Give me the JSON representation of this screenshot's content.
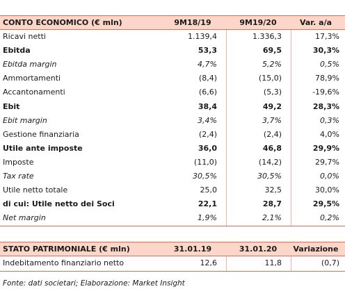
{
  "income": {
    "header": [
      "CONTO ECONOMICO (€ mln)",
      "9M18/19",
      "9M19/20",
      "Var. a/a"
    ],
    "rows": [
      {
        "label": "Ricavi netti",
        "values": [
          "1.139,4",
          "1.336,3",
          "17,3%"
        ],
        "style": "normal"
      },
      {
        "label": "Ebitda",
        "values": [
          "53,3",
          "69,5",
          "30,3%"
        ],
        "style": "bold"
      },
      {
        "label": "Ebitda margin",
        "values": [
          "4,7%",
          "5,2%",
          "0,5%"
        ],
        "style": "italic"
      },
      {
        "label": "Ammortamenti",
        "values": [
          "(8,4)",
          "(15,0)",
          "78,9%"
        ],
        "style": "normal"
      },
      {
        "label": "Accantonamenti",
        "values": [
          "(6,6)",
          "(5,3)",
          "-19,6%"
        ],
        "style": "normal"
      },
      {
        "label": "Ebit",
        "values": [
          "38,4",
          "49,2",
          "28,3%"
        ],
        "style": "bold"
      },
      {
        "label": "Ebit margin",
        "values": [
          "3,4%",
          "3,7%",
          "0,3%"
        ],
        "style": "italic"
      },
      {
        "label": "Gestione finanziaria",
        "values": [
          "(2,4)",
          "(2,4)",
          "4,0%"
        ],
        "style": "normal"
      },
      {
        "label": "Utile ante imposte",
        "values": [
          "36,0",
          "46,8",
          "29,9%"
        ],
        "style": "bold"
      },
      {
        "label": "Imposte",
        "values": [
          "(11,0)",
          "(14,2)",
          "29,7%"
        ],
        "style": "normal"
      },
      {
        "label": "Tax rate",
        "values": [
          "30,5%",
          "30,5%",
          "0,0%"
        ],
        "style": "italic"
      },
      {
        "label": "Utile netto totale",
        "values": [
          "25,0",
          "32,5",
          "30,0%"
        ],
        "style": "normal"
      },
      {
        "label": "di cui: Utile netto dei Soci",
        "values": [
          "22,1",
          "28,7",
          "29,5%"
        ],
        "style": "bold"
      },
      {
        "label": "Net margin",
        "values": [
          "1,9%",
          "2,1%",
          "0,2%"
        ],
        "style": "italic"
      }
    ]
  },
  "balance": {
    "header": [
      "STATO PATRIMONIALE (€ mln)",
      "31.01.19",
      "31.01.20",
      "Variazione"
    ],
    "rows": [
      {
        "label": "Indebitamento finanziario netto",
        "values": [
          "12,6",
          "11,8",
          "(0,7)"
        ],
        "style": "normal"
      }
    ]
  },
  "footer": "Fonte: dati societari; Elaborazione: Market Insight"
}
